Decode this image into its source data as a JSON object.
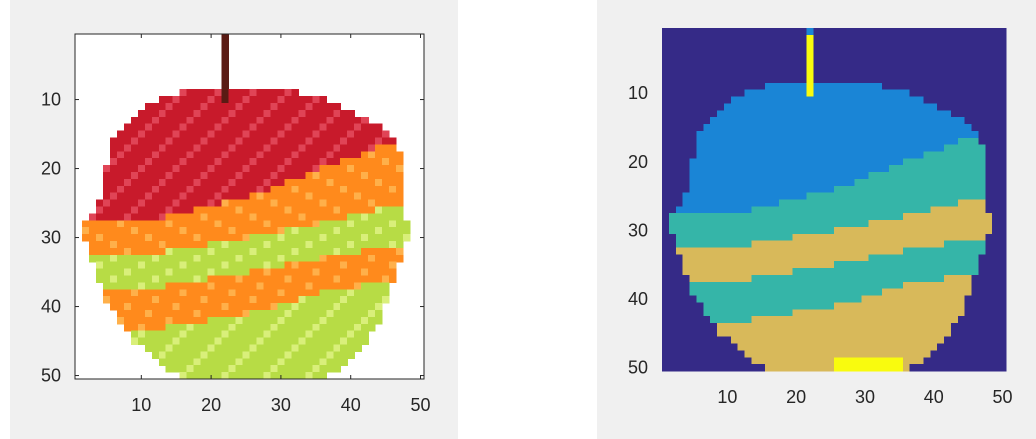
{
  "colors": {
    "figure_background": "#f0f0f0",
    "axes_background": "#ffffff",
    "axis_line": "#262626",
    "parula": [
      "#352a87",
      "#1a85d6",
      "#35b5a8",
      "#d8b95a",
      "#f9fb0e"
    ],
    "apple": {
      "red": "#c81a2b",
      "red_light": "#e04456",
      "orange": "#ff8a1c",
      "orange_light": "#ffb04a",
      "green": "#b7dc45",
      "green_light": "#d9ef7a",
      "stem": "#5a1b14"
    }
  },
  "chart_data": [
    {
      "type": "heatmap",
      "name": "original-image",
      "title": "",
      "xlabel": "",
      "ylabel": "",
      "xlim": [
        0.5,
        50.5
      ],
      "ylim": [
        50.5,
        0.5
      ],
      "xticks": [
        10,
        20,
        30,
        40,
        50
      ],
      "yticks": [
        10,
        20,
        30,
        40,
        50
      ],
      "content": "RGB photo of an apple with interleaved orange and green slices, 50x50 pixels"
    },
    {
      "type": "heatmap",
      "name": "segmented-image",
      "title": "",
      "xlabel": "",
      "ylabel": "",
      "xlim": [
        0.5,
        50.5
      ],
      "ylim": [
        50.5,
        0.5
      ],
      "xticks": [
        10,
        20,
        30,
        40,
        50
      ],
      "yticks": [
        10,
        20,
        30,
        40,
        50
      ],
      "grid": false,
      "cluster_count": 5,
      "colormap": "parula"
    }
  ]
}
